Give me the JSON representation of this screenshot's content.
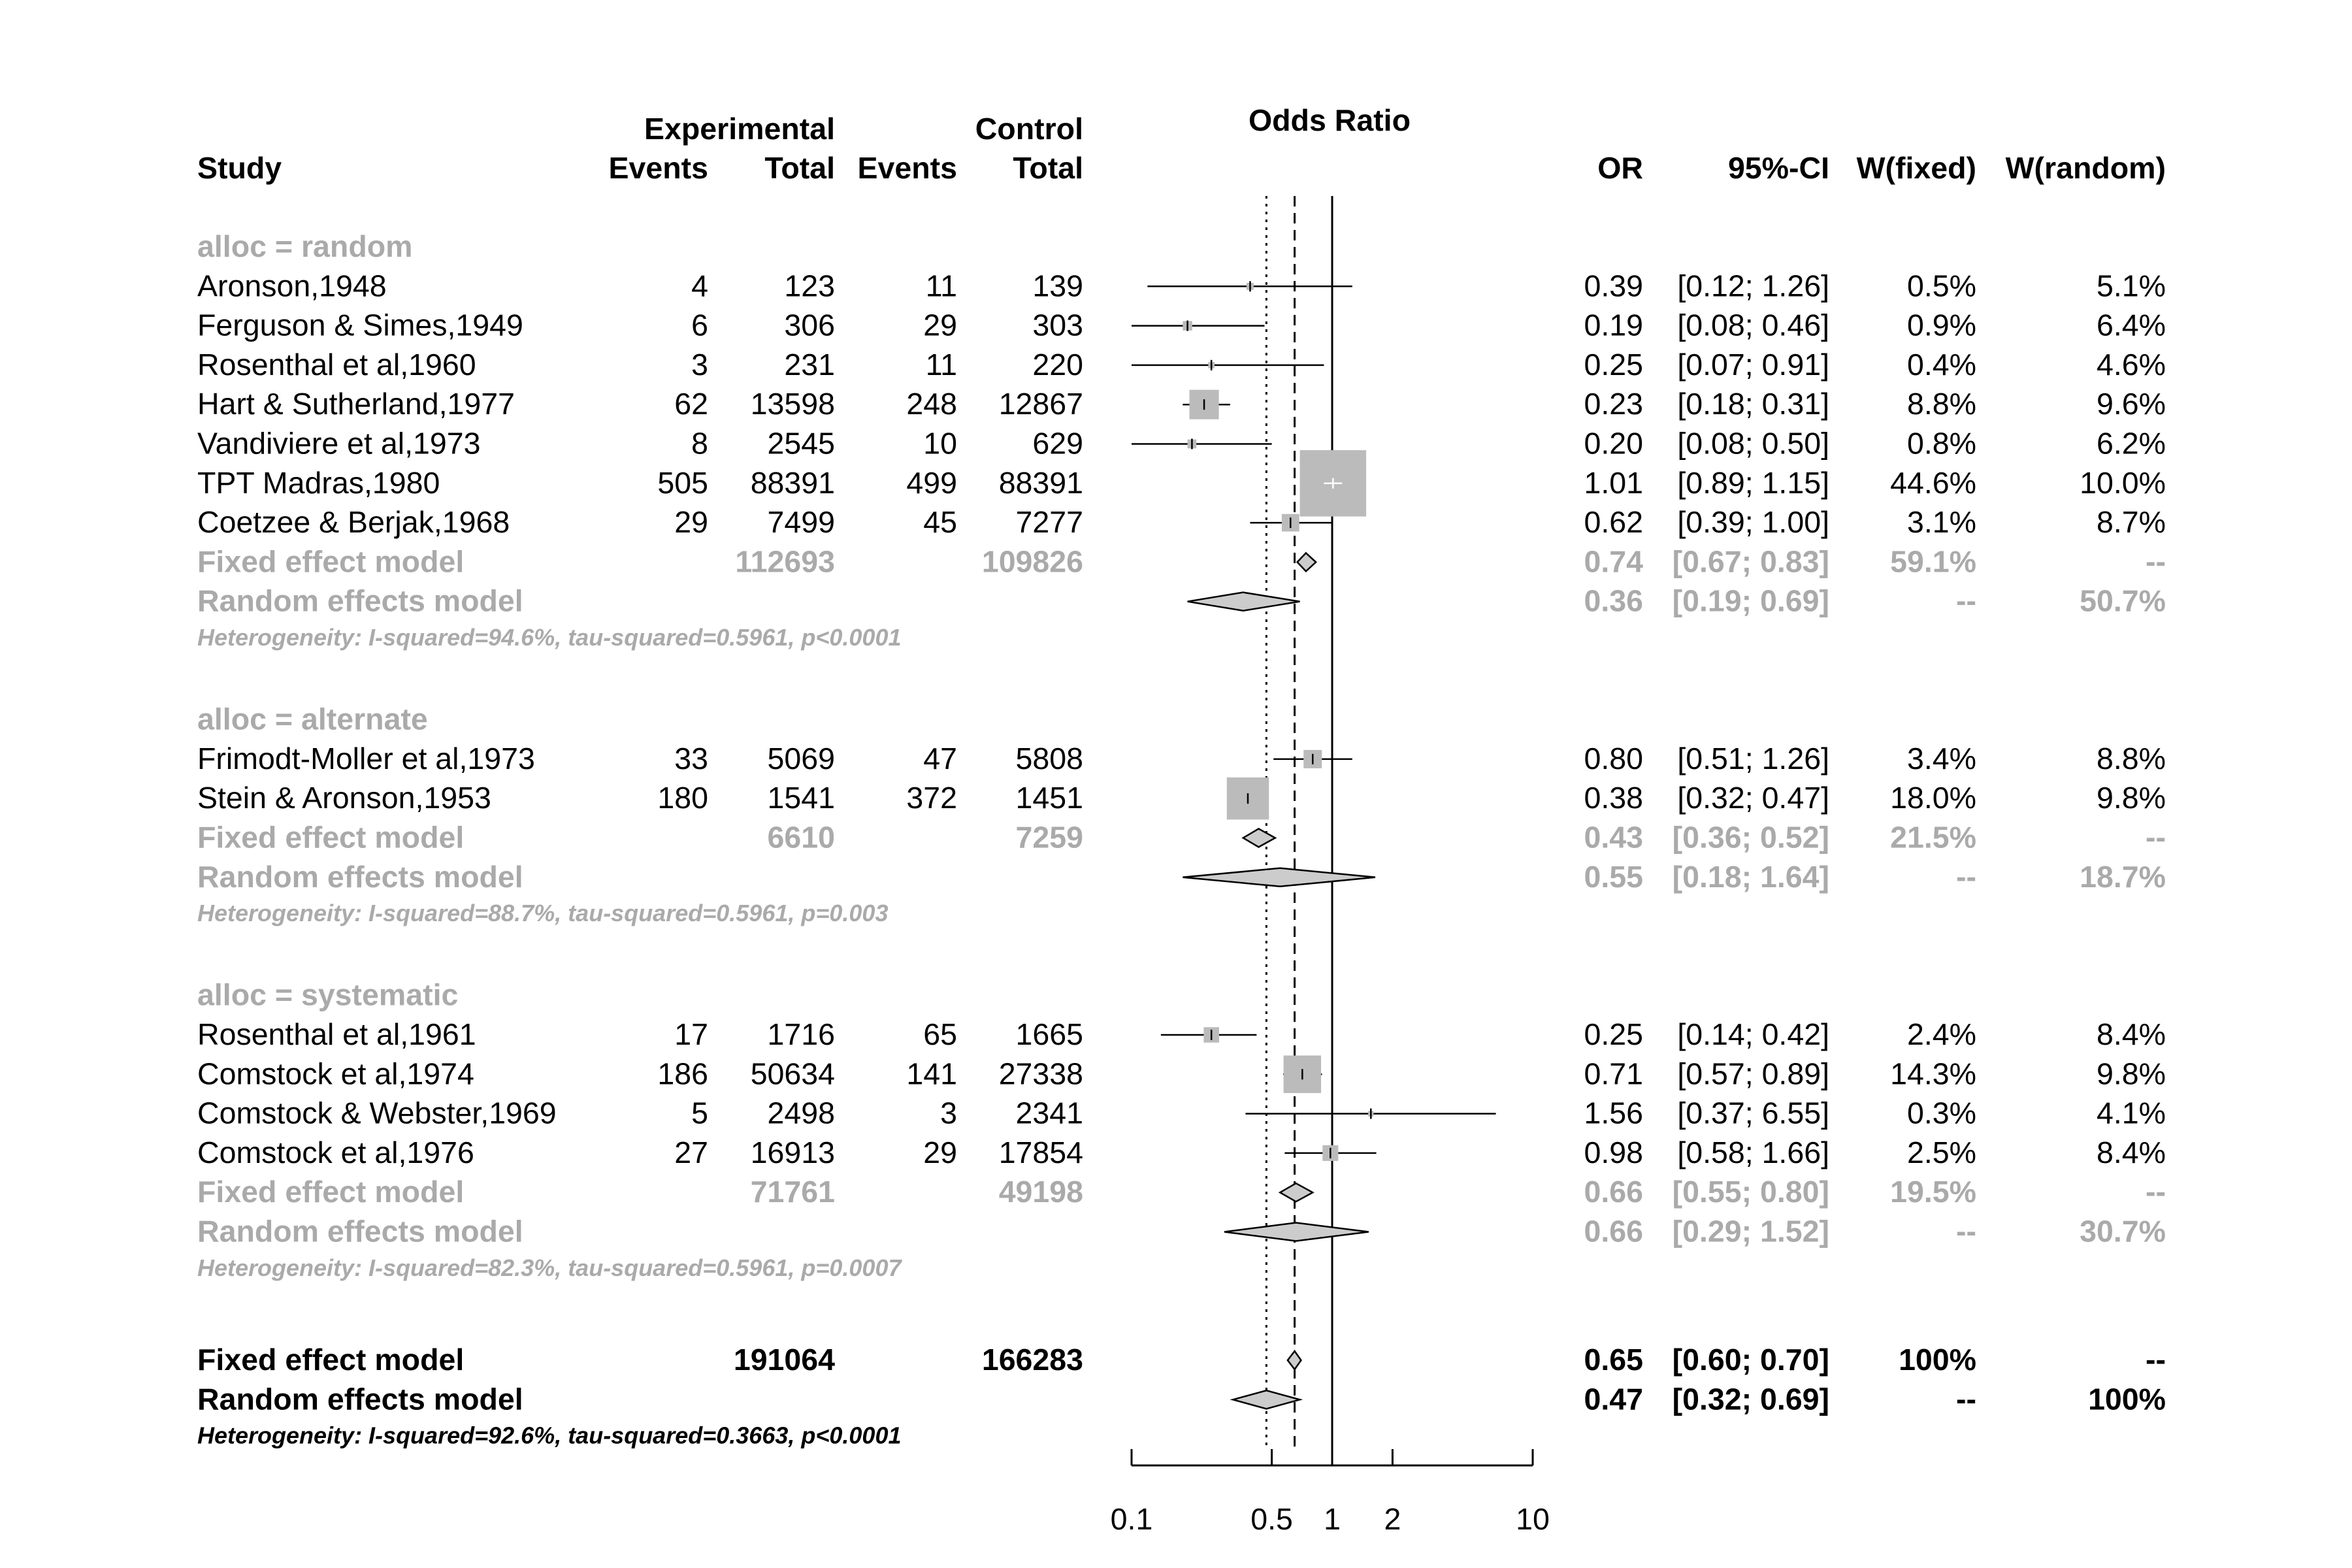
{
  "chart_data": {
    "type": "forest",
    "title": "Odds Ratio",
    "headers": {
      "experimental": "Experimental",
      "control": "Control",
      "study": "Study",
      "events": "Events",
      "total": "Total",
      "or": "OR",
      "ci": "95%-CI",
      "wfixed": "W(fixed)",
      "wrandom": "W(random)"
    },
    "x_axis": {
      "scale": "log",
      "range": [
        0.1,
        10
      ],
      "ticks": [
        0.1,
        0.5,
        1,
        2,
        10
      ],
      "tick_labels": [
        "0.1",
        "0.5",
        "1",
        "2",
        "10"
      ]
    },
    "reference_lines": {
      "null": 1,
      "fixed": 0.65,
      "random": 0.47
    },
    "groups": [
      {
        "label": "alloc = random",
        "studies": [
          {
            "name": "Aronson,1948",
            "e_events": "4",
            "e_total": "123",
            "c_events": "11",
            "c_total": "139",
            "or": 0.39,
            "lo": 0.12,
            "hi": 1.26,
            "or_text": "0.39",
            "ci_text": "[0.12; 1.26]",
            "wf_text": "0.5%",
            "wr_text": "5.1%",
            "wf": 0.5
          },
          {
            "name": "Ferguson & Simes,1949",
            "e_events": "6",
            "e_total": "306",
            "c_events": "29",
            "c_total": "303",
            "or": 0.19,
            "lo": 0.08,
            "hi": 0.46,
            "or_text": "0.19",
            "ci_text": "[0.08; 0.46]",
            "wf_text": "0.9%",
            "wr_text": "6.4%",
            "wf": 0.9
          },
          {
            "name": "Rosenthal et al,1960",
            "e_events": "3",
            "e_total": "231",
            "c_events": "11",
            "c_total": "220",
            "or": 0.25,
            "lo": 0.07,
            "hi": 0.91,
            "or_text": "0.25",
            "ci_text": "[0.07; 0.91]",
            "wf_text": "0.4%",
            "wr_text": "4.6%",
            "wf": 0.4
          },
          {
            "name": "Hart & Sutherland,1977",
            "e_events": "62",
            "e_total": "13598",
            "c_events": "248",
            "c_total": "12867",
            "or": 0.23,
            "lo": 0.18,
            "hi": 0.31,
            "or_text": "0.23",
            "ci_text": "[0.18; 0.31]",
            "wf_text": "8.8%",
            "wr_text": "9.6%",
            "wf": 8.8
          },
          {
            "name": "Vandiviere et al,1973",
            "e_events": "8",
            "e_total": "2545",
            "c_events": "10",
            "c_total": "629",
            "or": 0.2,
            "lo": 0.08,
            "hi": 0.5,
            "or_text": "0.20",
            "ci_text": "[0.08; 0.50]",
            "wf_text": "0.8%",
            "wr_text": "6.2%",
            "wf": 0.8
          },
          {
            "name": "TPT Madras,1980",
            "e_events": "505",
            "e_total": "88391",
            "c_events": "499",
            "c_total": "88391",
            "or": 1.01,
            "lo": 0.89,
            "hi": 1.15,
            "or_text": "1.01",
            "ci_text": "[0.89; 1.15]",
            "wf_text": "44.6%",
            "wr_text": "10.0%",
            "wf": 44.6
          },
          {
            "name": "Coetzee & Berjak,1968",
            "e_events": "29",
            "e_total": "7499",
            "c_events": "45",
            "c_total": "7277",
            "or": 0.62,
            "lo": 0.39,
            "hi": 1.0,
            "or_text": "0.62",
            "ci_text": "[0.39; 1.00]",
            "wf_text": "3.1%",
            "wr_text": "8.7%",
            "wf": 3.1
          }
        ],
        "fixed": {
          "label": "Fixed effect model",
          "e_total": "112693",
          "c_total": "109826",
          "or": 0.74,
          "lo": 0.67,
          "hi": 0.83,
          "or_text": "0.74",
          "ci_text": "[0.67; 0.83]",
          "wf_text": "59.1%",
          "wr_text": "--"
        },
        "random": {
          "label": "Random effects model",
          "or": 0.36,
          "lo": 0.19,
          "hi": 0.69,
          "or_text": "0.36",
          "ci_text": "[0.19; 0.69]",
          "wf_text": "--",
          "wr_text": "50.7%"
        },
        "heterogeneity": "Heterogeneity: I-squared=94.6%, tau-squared=0.5961, p<0.0001"
      },
      {
        "label": "alloc = alternate",
        "studies": [
          {
            "name": "Frimodt-Moller et al,1973",
            "e_events": "33",
            "e_total": "5069",
            "c_events": "47",
            "c_total": "5808",
            "or": 0.8,
            "lo": 0.51,
            "hi": 1.26,
            "or_text": "0.80",
            "ci_text": "[0.51; 1.26]",
            "wf_text": "3.4%",
            "wr_text": "8.8%",
            "wf": 3.4
          },
          {
            "name": "Stein & Aronson,1953",
            "e_events": "180",
            "e_total": "1541",
            "c_events": "372",
            "c_total": "1451",
            "or": 0.38,
            "lo": 0.32,
            "hi": 0.47,
            "or_text": "0.38",
            "ci_text": "[0.32; 0.47]",
            "wf_text": "18.0%",
            "wr_text": "9.8%",
            "wf": 18.0
          }
        ],
        "fixed": {
          "label": "Fixed effect model",
          "e_total": "6610",
          "c_total": "7259",
          "or": 0.43,
          "lo": 0.36,
          "hi": 0.52,
          "or_text": "0.43",
          "ci_text": "[0.36; 0.52]",
          "wf_text": "21.5%",
          "wr_text": "--"
        },
        "random": {
          "label": "Random effects model",
          "or": 0.55,
          "lo": 0.18,
          "hi": 1.64,
          "or_text": "0.55",
          "ci_text": "[0.18; 1.64]",
          "wf_text": "--",
          "wr_text": "18.7%"
        },
        "heterogeneity": "Heterogeneity: I-squared=88.7%, tau-squared=0.5961, p=0.003"
      },
      {
        "label": "alloc = systematic",
        "studies": [
          {
            "name": "Rosenthal et al,1961",
            "e_events": "17",
            "e_total": "1716",
            "c_events": "65",
            "c_total": "1665",
            "or": 0.25,
            "lo": 0.14,
            "hi": 0.42,
            "or_text": "0.25",
            "ci_text": "[0.14; 0.42]",
            "wf_text": "2.4%",
            "wr_text": "8.4%",
            "wf": 2.4
          },
          {
            "name": "Comstock et al,1974",
            "e_events": "186",
            "e_total": "50634",
            "c_events": "141",
            "c_total": "27338",
            "or": 0.71,
            "lo": 0.57,
            "hi": 0.89,
            "or_text": "0.71",
            "ci_text": "[0.57; 0.89]",
            "wf_text": "14.3%",
            "wr_text": "9.8%",
            "wf": 14.3
          },
          {
            "name": "Comstock & Webster,1969",
            "e_events": "5",
            "e_total": "2498",
            "c_events": "3",
            "c_total": "2341",
            "or": 1.56,
            "lo": 0.37,
            "hi": 6.55,
            "or_text": "1.56",
            "ci_text": "[0.37; 6.55]",
            "wf_text": "0.3%",
            "wr_text": "4.1%",
            "wf": 0.3
          },
          {
            "name": "Comstock et al,1976",
            "e_events": "27",
            "e_total": "16913",
            "c_events": "29",
            "c_total": "17854",
            "or": 0.98,
            "lo": 0.58,
            "hi": 1.66,
            "or_text": "0.98",
            "ci_text": "[0.58; 1.66]",
            "wf_text": "2.5%",
            "wr_text": "8.4%",
            "wf": 2.5
          }
        ],
        "fixed": {
          "label": "Fixed effect model",
          "e_total": "71761",
          "c_total": "49198",
          "or": 0.66,
          "lo": 0.55,
          "hi": 0.8,
          "or_text": "0.66",
          "ci_text": "[0.55; 0.80]",
          "wf_text": "19.5%",
          "wr_text": "--"
        },
        "random": {
          "label": "Random effects model",
          "or": 0.66,
          "lo": 0.29,
          "hi": 1.52,
          "or_text": "0.66",
          "ci_text": "[0.29; 1.52]",
          "wf_text": "--",
          "wr_text": "30.7%"
        },
        "heterogeneity": "Heterogeneity: I-squared=82.3%, tau-squared=0.5961, p=0.0007"
      }
    ],
    "overall": {
      "fixed": {
        "label": "Fixed effect model",
        "e_total": "191064",
        "c_total": "166283",
        "or": 0.65,
        "lo": 0.6,
        "hi": 0.7,
        "or_text": "0.65",
        "ci_text": "[0.60; 0.70]",
        "wf_text": "100%",
        "wr_text": "--"
      },
      "random": {
        "label": "Random effects model",
        "or": 0.47,
        "lo": 0.32,
        "hi": 0.69,
        "or_text": "0.47",
        "ci_text": "[0.32; 0.69]",
        "wf_text": "--",
        "wr_text": "100%"
      },
      "heterogeneity": "Heterogeneity: I-squared=92.6%, tau-squared=0.3663, p<0.0001"
    },
    "colors": {
      "text": "#000000",
      "subgroup_text": "#aaaaaa",
      "square": "#bbbbbb",
      "diamond_fill": "#cccccc",
      "line": "#000000"
    }
  }
}
